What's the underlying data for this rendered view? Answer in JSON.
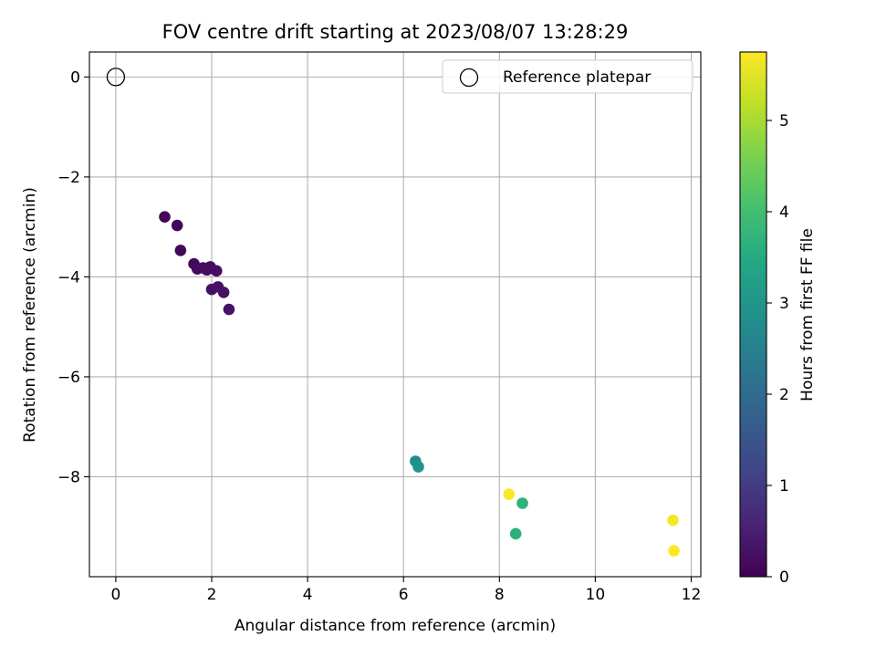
{
  "chart_data": {
    "type": "scatter",
    "title": "FOV centre drift starting at 2023/08/07 13:28:29",
    "xlabel": "Angular distance from reference (arcmin)",
    "ylabel": "Rotation from reference (arcmin)",
    "xlim": [
      -0.55,
      12.2
    ],
    "ylim": [
      -10.0,
      0.5
    ],
    "xticks": [
      0,
      2,
      4,
      6,
      8,
      10,
      12
    ],
    "yticks": [
      0,
      -2,
      -4,
      -6,
      -8
    ],
    "xtick_labels": [
      "0",
      "2",
      "4",
      "6",
      "8",
      "10",
      "12"
    ],
    "ytick_labels": [
      "0",
      "−2",
      "−4",
      "−6",
      "−8"
    ],
    "grid": true,
    "legend": {
      "position": "top-right",
      "entries": [
        {
          "label": "Reference platepar",
          "marker": "open-circle"
        }
      ]
    },
    "reference_point": {
      "x": 0,
      "y": 0
    },
    "colorbar": {
      "label": "Hours from first FF file",
      "colormap": "viridis",
      "range": [
        0,
        5.75
      ],
      "ticks": [
        0,
        1,
        2,
        3,
        4,
        5
      ],
      "tick_labels": [
        "0",
        "1",
        "2",
        "3",
        "4",
        "5"
      ]
    },
    "points": [
      {
        "x": 1.02,
        "y": -2.8,
        "hours": 0.05
      },
      {
        "x": 1.28,
        "y": -2.97,
        "hours": 0.08
      },
      {
        "x": 1.35,
        "y": -3.47,
        "hours": 0.1
      },
      {
        "x": 1.63,
        "y": -3.74,
        "hours": 0.12
      },
      {
        "x": 1.7,
        "y": -3.84,
        "hours": 0.14
      },
      {
        "x": 1.82,
        "y": -3.82,
        "hours": 0.16
      },
      {
        "x": 1.9,
        "y": -3.86,
        "hours": 0.18
      },
      {
        "x": 1.97,
        "y": -3.8,
        "hours": 0.2
      },
      {
        "x": 2.1,
        "y": -3.88,
        "hours": 0.22
      },
      {
        "x": 2.0,
        "y": -4.25,
        "hours": 0.24
      },
      {
        "x": 2.13,
        "y": -4.2,
        "hours": 0.26
      },
      {
        "x": 2.25,
        "y": -4.31,
        "hours": 0.28
      },
      {
        "x": 2.36,
        "y": -4.65,
        "hours": 0.3
      },
      {
        "x": 6.25,
        "y": -7.69,
        "hours": 2.85
      },
      {
        "x": 6.31,
        "y": -7.8,
        "hours": 2.9
      },
      {
        "x": 8.2,
        "y": -8.35,
        "hours": 5.72
      },
      {
        "x": 8.48,
        "y": -8.53,
        "hours": 3.7
      },
      {
        "x": 8.34,
        "y": -9.14,
        "hours": 3.65
      },
      {
        "x": 11.62,
        "y": -8.87,
        "hours": 5.7
      },
      {
        "x": 11.64,
        "y": -9.48,
        "hours": 5.75
      }
    ]
  }
}
